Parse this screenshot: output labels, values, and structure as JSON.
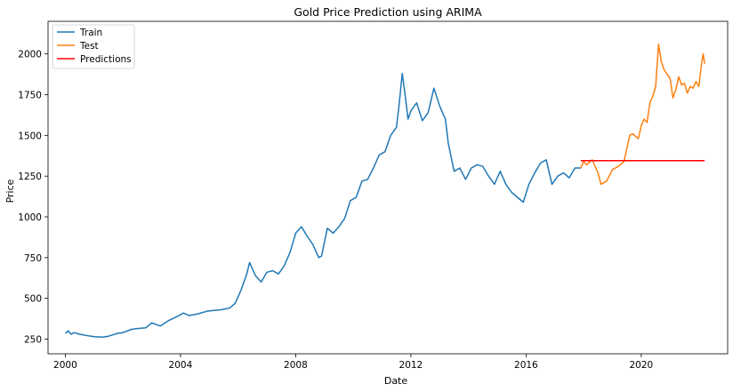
{
  "chart_data": {
    "type": "line",
    "title": "Gold Price Prediction using ARIMA",
    "xlabel": "Date",
    "ylabel": "Price",
    "xlim": [
      1999.4,
      2023.0
    ],
    "ylim": [
      160,
      2200
    ],
    "x_ticks": [
      {
        "value": 2000,
        "label": "2000"
      },
      {
        "value": 2004,
        "label": "2004"
      },
      {
        "value": 2008,
        "label": "2008"
      },
      {
        "value": 2012,
        "label": "2012"
      },
      {
        "value": 2016,
        "label": "2016"
      },
      {
        "value": 2020,
        "label": "2020"
      }
    ],
    "y_ticks": [
      {
        "value": 250,
        "label": "250"
      },
      {
        "value": 500,
        "label": "500"
      },
      {
        "value": 750,
        "label": "750"
      },
      {
        "value": 1000,
        "label": "1000"
      },
      {
        "value": 1250,
        "label": "1250"
      },
      {
        "value": 1500,
        "label": "1500"
      },
      {
        "value": 1750,
        "label": "1750"
      },
      {
        "value": 2000,
        "label": "2000"
      }
    ],
    "grid": false,
    "legend_position": "top-left",
    "series": [
      {
        "name": "Train",
        "color": "#1f77b4",
        "x": [
          2000.0,
          2000.1,
          2000.2,
          2000.3,
          2000.5,
          2000.8,
          2001.0,
          2001.3,
          2001.5,
          2001.8,
          2002.0,
          2002.3,
          2002.5,
          2002.8,
          2003.0,
          2003.3,
          2003.6,
          2003.9,
          2004.1,
          2004.3,
          2004.6,
          2004.9,
          2005.1,
          2005.4,
          2005.7,
          2005.9,
          2006.1,
          2006.3,
          2006.4,
          2006.6,
          2006.8,
          2007.0,
          2007.2,
          2007.4,
          2007.6,
          2007.8,
          2008.0,
          2008.2,
          2008.4,
          2008.6,
          2008.8,
          2008.9,
          2009.1,
          2009.3,
          2009.5,
          2009.7,
          2009.9,
          2010.1,
          2010.3,
          2010.5,
          2010.7,
          2010.9,
          2011.1,
          2011.3,
          2011.5,
          2011.6,
          2011.7,
          2011.8,
          2011.9,
          2012.0,
          2012.2,
          2012.4,
          2012.6,
          2012.8,
          2013.0,
          2013.2,
          2013.3,
          2013.5,
          2013.7,
          2013.9,
          2014.1,
          2014.3,
          2014.5,
          2014.7,
          2014.9,
          2015.1,
          2015.3,
          2015.5,
          2015.7,
          2015.9,
          2016.1,
          2016.3,
          2016.5,
          2016.7,
          2016.9,
          2017.1,
          2017.3,
          2017.5,
          2017.7,
          2017.9
        ],
        "y": [
          285,
          300,
          280,
          290,
          280,
          270,
          265,
          262,
          268,
          285,
          290,
          310,
          315,
          320,
          350,
          330,
          365,
          390,
          410,
          395,
          405,
          420,
          425,
          430,
          440,
          470,
          550,
          650,
          720,
          640,
          600,
          660,
          670,
          650,
          700,
          780,
          900,
          940,
          880,
          830,
          750,
          760,
          930,
          900,
          940,
          990,
          1100,
          1120,
          1220,
          1230,
          1300,
          1380,
          1400,
          1500,
          1550,
          1700,
          1880,
          1750,
          1600,
          1650,
          1700,
          1590,
          1640,
          1790,
          1680,
          1600,
          1450,
          1280,
          1300,
          1230,
          1300,
          1320,
          1310,
          1250,
          1200,
          1280,
          1200,
          1150,
          1120,
          1090,
          1200,
          1270,
          1330,
          1350,
          1200,
          1250,
          1270,
          1240,
          1300,
          1300
        ]
      },
      {
        "name": "Test",
        "color": "#ff7f0e",
        "x": [
          2017.9,
          2018.0,
          2018.1,
          2018.3,
          2018.5,
          2018.6,
          2018.8,
          2019.0,
          2019.2,
          2019.4,
          2019.5,
          2019.6,
          2019.7,
          2019.9,
          2020.0,
          2020.1,
          2020.2,
          2020.3,
          2020.4,
          2020.5,
          2020.6,
          2020.7,
          2020.8,
          2021.0,
          2021.1,
          2021.2,
          2021.3,
          2021.4,
          2021.5,
          2021.6,
          2021.7,
          2021.8,
          2021.9,
          2022.0,
          2022.1,
          2022.15,
          2022.2
        ],
        "y": [
          1300,
          1340,
          1320,
          1350,
          1270,
          1200,
          1220,
          1290,
          1310,
          1340,
          1420,
          1500,
          1510,
          1480,
          1560,
          1600,
          1580,
          1700,
          1740,
          1800,
          2060,
          1950,
          1900,
          1850,
          1730,
          1780,
          1860,
          1810,
          1820,
          1760,
          1800,
          1790,
          1830,
          1800,
          1950,
          2000,
          1940
        ]
      },
      {
        "name": "Predictions",
        "color": "#ff0000",
        "x": [
          2017.9,
          2022.2
        ],
        "y": [
          1345,
          1345
        ]
      }
    ]
  }
}
